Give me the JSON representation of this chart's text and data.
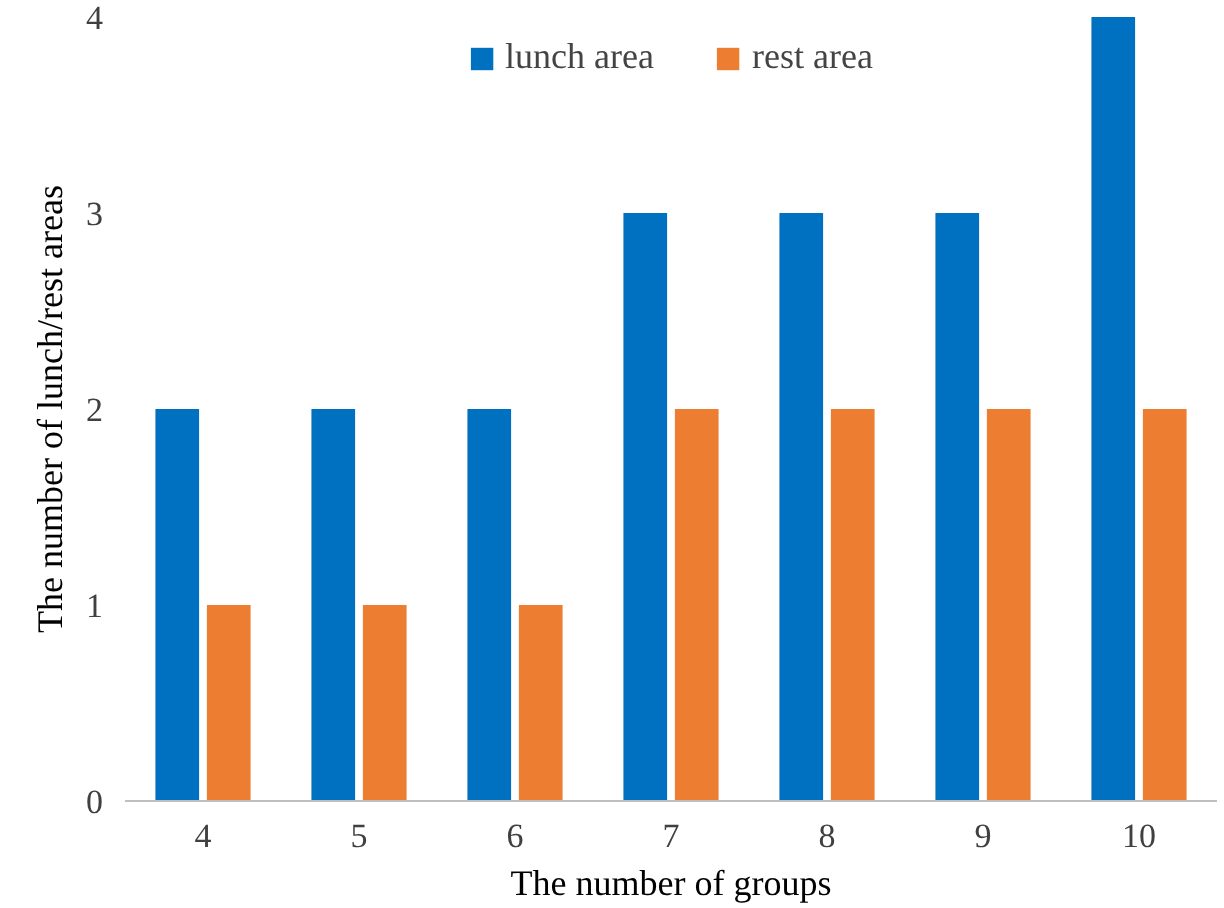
{
  "chart_data": {
    "type": "bar",
    "xlabel": "The number of groups",
    "ylabel": "The number of lunch/rest areas",
    "categories": [
      "4",
      "5",
      "6",
      "7",
      "8",
      "9",
      "10"
    ],
    "series": [
      {
        "name": "lunch area",
        "color": "#0070c0",
        "values": [
          2,
          2,
          2,
          3,
          3,
          3,
          4
        ]
      },
      {
        "name": "rest area",
        "color": "#ed7d31",
        "values": [
          1,
          1,
          1,
          2,
          2,
          2,
          2
        ]
      }
    ],
    "ylim": [
      0,
      4
    ],
    "yticks": [
      0,
      1,
      2,
      3,
      4
    ],
    "grid": false,
    "legend": "top"
  }
}
